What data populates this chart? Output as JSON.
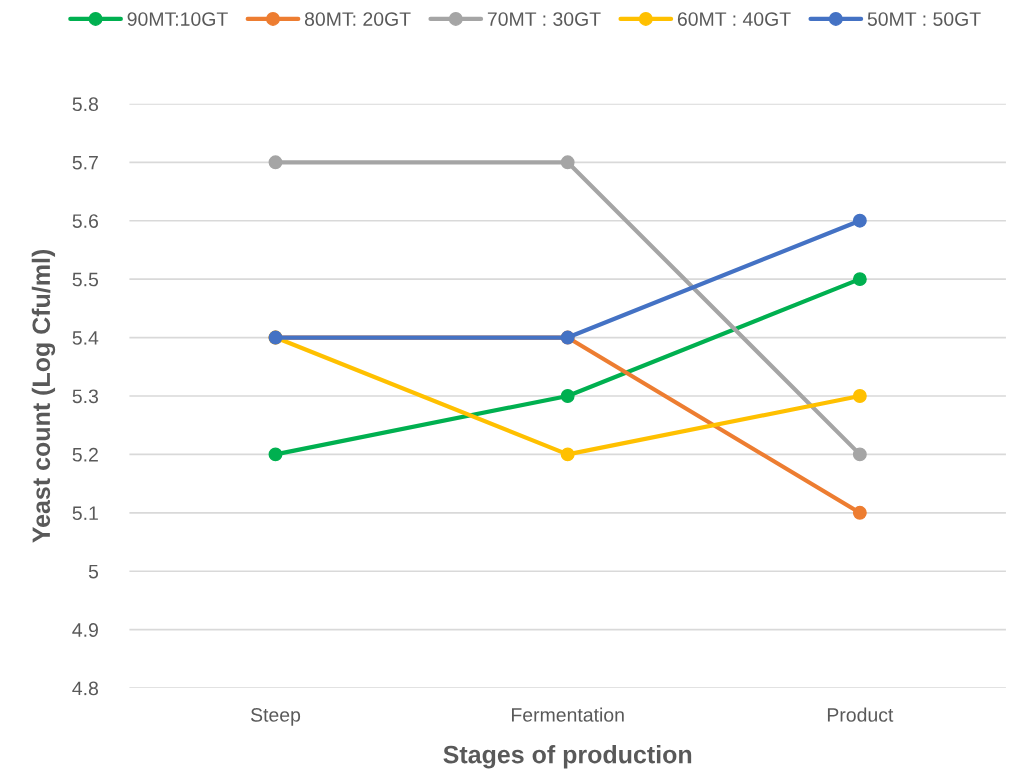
{
  "chart_data": {
    "type": "line",
    "xlabel": "Stages of production",
    "ylabel": "Yeast count (Log Cfu/ml)",
    "categories": [
      "Steep",
      "Fermentation",
      "Product"
    ],
    "series": [
      {
        "name": "90MT:10GT",
        "color": "#00b050",
        "values": [
          5.2,
          5.3,
          5.5
        ]
      },
      {
        "name": "80MT: 20GT",
        "color": "#ed7d31",
        "values": [
          5.4,
          5.4,
          5.1
        ]
      },
      {
        "name": "70MT : 30GT",
        "color": "#a5a5a5",
        "values": [
          5.7,
          5.7,
          5.2
        ]
      },
      {
        "name": "60MT : 40GT",
        "color": "#ffc000",
        "values": [
          5.4,
          5.2,
          5.3
        ]
      },
      {
        "name": "50MT : 50GT",
        "color": "#4472c4",
        "values": [
          5.4,
          5.4,
          5.6
        ]
      }
    ],
    "ylim": [
      4.8,
      5.8
    ],
    "yticks": [
      4.8,
      4.9,
      {
        "value": 5.0,
        "label": "5"
      },
      5.1,
      5.2,
      5.3,
      5.4,
      5.5,
      5.6,
      5.7,
      5.8
    ],
    "grid": "y",
    "legend": "top",
    "marker": "circle",
    "line_style": "solid"
  }
}
